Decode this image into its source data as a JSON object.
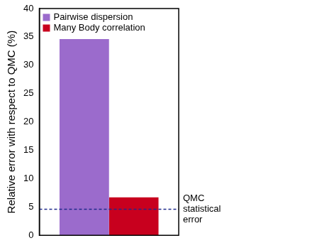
{
  "chart_data": {
    "type": "bar",
    "y_label": "Relative error with respect to QMC (%)",
    "categories": [
      null
    ],
    "series": [
      {
        "name": "Pairwise dispersion",
        "color": "#9b6bcc",
        "values": [
          34.6
        ]
      },
      {
        "name": "Many Body correlation",
        "color": "#c8001e",
        "values": [
          6.7
        ]
      }
    ],
    "ylim": [
      0,
      40
    ],
    "yticks": [
      0,
      5,
      10,
      15,
      20,
      25,
      30,
      35,
      40
    ],
    "grid": false,
    "legend": "upper left",
    "tick_labels": "y",
    "annotations": [
      {
        "text": "QMC statistical error",
        "y": 4.6,
        "line_style": "dashed",
        "color": "#1f2a8a"
      }
    ]
  }
}
